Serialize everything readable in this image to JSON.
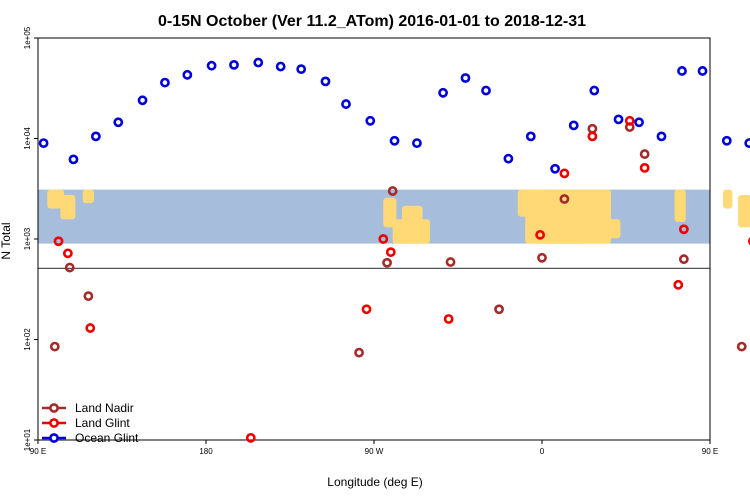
{
  "chart_data": {
    "type": "scatter",
    "title": "0-15N October (Ver 11.2_ATom)   2016-01-01 to 2018-12-31",
    "xlabel": "Longitude (deg E)",
    "ylabel": "N Total",
    "xlim": [
      90,
      450
    ],
    "ylim_log10": [
      1,
      5
    ],
    "x_ticks": [
      {
        "value": 90,
        "label": "90 E"
      },
      {
        "value": 180,
        "label": "180"
      },
      {
        "value": 270,
        "label": "90 W"
      },
      {
        "value": 360,
        "label": "0"
      },
      {
        "value": 450,
        "label": "90 E"
      },
      {
        "value": 540,
        "label": "180"
      }
    ],
    "y_ticks": [
      {
        "value": 10,
        "label": "1e+01"
      },
      {
        "value": 100,
        "label": "1e+02"
      },
      {
        "value": 1000,
        "label": "1e+03"
      },
      {
        "value": 10000,
        "label": "1e+04"
      },
      {
        "value": 100000,
        "label": "1e+05"
      }
    ],
    "reference_line_y": 510,
    "map_band": {
      "y_min": 900,
      "y_max": 3100,
      "ocean_color": "#a6bddb",
      "land_color": "#fed976"
    },
    "legend_position": "bottom-left",
    "series": [
      {
        "name": "Land Nadir",
        "color": "#a52a2a",
        "points": [
          {
            "x": 99,
            "y": 85
          },
          {
            "x": 107,
            "y": 520
          },
          {
            "x": 117,
            "y": 270
          },
          {
            "x": 262,
            "y": 74
          },
          {
            "x": 277,
            "y": 580
          },
          {
            "x": 280,
            "y": 3000
          },
          {
            "x": 311,
            "y": 590
          },
          {
            "x": 337,
            "y": 200
          },
          {
            "x": 360,
            "y": 650
          },
          {
            "x": 372,
            "y": 2500
          },
          {
            "x": 387,
            "y": 12500
          },
          {
            "x": 407,
            "y": 13000
          },
          {
            "x": 415,
            "y": 7000
          },
          {
            "x": 436,
            "y": 630
          },
          {
            "x": 467,
            "y": 85
          },
          {
            "x": 478,
            "y": 510
          },
          {
            "x": 489,
            "y": 270
          }
        ]
      },
      {
        "name": "Land Glint",
        "color": "#ee0000",
        "points": [
          {
            "x": 101,
            "y": 950
          },
          {
            "x": 106,
            "y": 720
          },
          {
            "x": 118,
            "y": 130
          },
          {
            "x": 204,
            "y": 10.5
          },
          {
            "x": 266,
            "y": 200
          },
          {
            "x": 275,
            "y": 1000
          },
          {
            "x": 279,
            "y": 740
          },
          {
            "x": 310,
            "y": 160
          },
          {
            "x": 359,
            "y": 1100
          },
          {
            "x": 372,
            "y": 4500
          },
          {
            "x": 387,
            "y": 10500
          },
          {
            "x": 407,
            "y": 15000
          },
          {
            "x": 415,
            "y": 5100
          },
          {
            "x": 433,
            "y": 350
          },
          {
            "x": 436,
            "y": 1250
          },
          {
            "x": 473,
            "y": 950
          },
          {
            "x": 477,
            "y": 720
          },
          {
            "x": 490,
            "y": 130
          }
        ]
      },
      {
        "name": "Ocean Glint",
        "color": "#0000dd",
        "points": [
          {
            "x": 93,
            "y": 9000
          },
          {
            "x": 109,
            "y": 6200
          },
          {
            "x": 121,
            "y": 10500
          },
          {
            "x": 133,
            "y": 14500
          },
          {
            "x": 146,
            "y": 24000
          },
          {
            "x": 158,
            "y": 36000
          },
          {
            "x": 170,
            "y": 43000
          },
          {
            "x": 183,
            "y": 53000
          },
          {
            "x": 195,
            "y": 54000
          },
          {
            "x": 208,
            "y": 57000
          },
          {
            "x": 220,
            "y": 52000
          },
          {
            "x": 231,
            "y": 49000
          },
          {
            "x": 244,
            "y": 37000
          },
          {
            "x": 255,
            "y": 22000
          },
          {
            "x": 268,
            "y": 15000
          },
          {
            "x": 281,
            "y": 9500
          },
          {
            "x": 293,
            "y": 9000
          },
          {
            "x": 307,
            "y": 28500
          },
          {
            "x": 319,
            "y": 40000
          },
          {
            "x": 330,
            "y": 30000
          },
          {
            "x": 342,
            "y": 6300
          },
          {
            "x": 354,
            "y": 10500
          },
          {
            "x": 367,
            "y": 5000
          },
          {
            "x": 377,
            "y": 13500
          },
          {
            "x": 388,
            "y": 30000
          },
          {
            "x": 401,
            "y": 15500
          },
          {
            "x": 412,
            "y": 14500
          },
          {
            "x": 424,
            "y": 10500
          },
          {
            "x": 435,
            "y": 47000
          },
          {
            "x": 446,
            "y": 47000
          },
          {
            "x": 459,
            "y": 9500
          },
          {
            "x": 471,
            "y": 9000
          },
          {
            "x": 483,
            "y": 6200
          }
        ]
      }
    ]
  }
}
